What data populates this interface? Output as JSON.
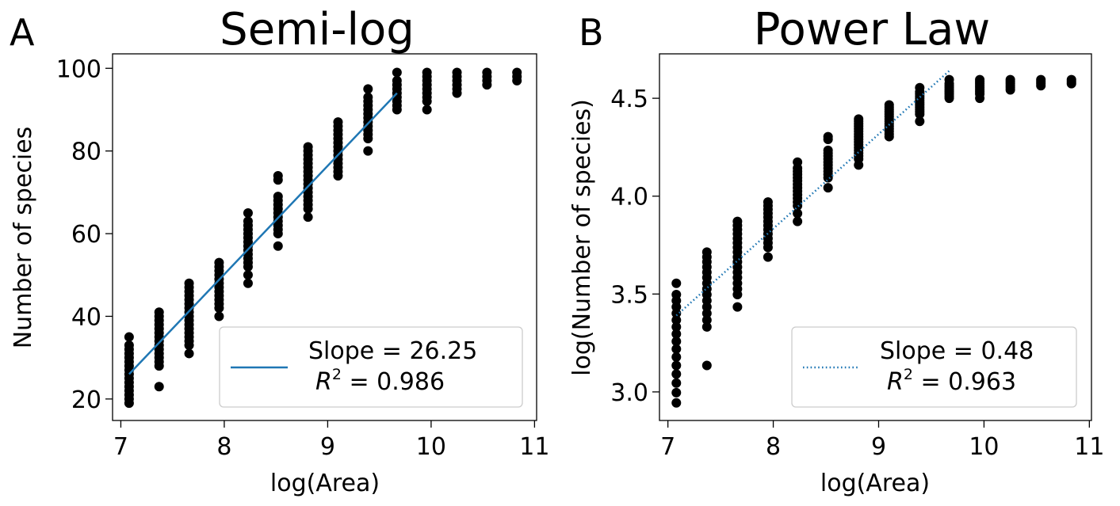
{
  "figure": {
    "panels": [
      {
        "letter": "A",
        "title": "Semi-log",
        "xlabel": "log(Area)",
        "ylabel": "Number of species"
      },
      {
        "letter": "B",
        "title": "Power Law",
        "xlabel": "log(Area)",
        "ylabel": "log(Number of species)"
      }
    ]
  },
  "chart_data": [
    {
      "type": "scatter",
      "title": "Semi-log",
      "xlabel": "log(Area)",
      "ylabel": "Number of species",
      "xlim": [
        6.92,
        11.02
      ],
      "ylim": [
        14.8,
        103.5
      ],
      "xticks": [
        "7",
        "8",
        "9",
        "10",
        "11"
      ],
      "yticks": [
        "20",
        "40",
        "60",
        "80",
        "100"
      ],
      "grid": false,
      "legend_position": "lower-right",
      "point_color": "#000000",
      "series": [
        {
          "x": 7.08,
          "y": [
            19,
            20,
            21,
            22,
            23,
            24,
            25,
            26,
            27,
            28,
            29,
            30,
            31,
            32,
            33,
            35
          ]
        },
        {
          "x": 7.37,
          "y": [
            23,
            28,
            29,
            30,
            31,
            32,
            33,
            34,
            35,
            36,
            37,
            38,
            39,
            40,
            41
          ]
        },
        {
          "x": 7.66,
          "y": [
            31,
            33,
            34,
            35,
            36,
            37,
            38,
            39,
            40,
            41,
            42,
            43,
            44,
            45,
            46,
            47,
            48
          ]
        },
        {
          "x": 7.95,
          "y": [
            40,
            42,
            43,
            44,
            45,
            46,
            47,
            48,
            49,
            50,
            51,
            52,
            53
          ]
        },
        {
          "x": 8.23,
          "y": [
            48,
            50,
            52,
            53,
            54,
            55,
            56,
            57,
            58,
            59,
            60,
            61,
            62,
            63,
            65
          ]
        },
        {
          "x": 8.52,
          "y": [
            57,
            60,
            61,
            62,
            63,
            64,
            65,
            66,
            67,
            68,
            69,
            73,
            74
          ]
        },
        {
          "x": 8.81,
          "y": [
            64,
            66,
            67,
            68,
            69,
            70,
            71,
            72,
            73,
            74,
            75,
            76,
            77,
            78,
            79,
            80,
            81
          ]
        },
        {
          "x": 9.1,
          "y": [
            74,
            75,
            76,
            77,
            78,
            79,
            80,
            81,
            82,
            83,
            84,
            85,
            86,
            87
          ]
        },
        {
          "x": 9.39,
          "y": [
            80,
            83,
            84,
            85,
            86,
            87,
            88,
            89,
            90,
            91,
            92,
            93,
            95
          ]
        },
        {
          "x": 9.67,
          "y": [
            90,
            91,
            92,
            93,
            94,
            95,
            96,
            97,
            99
          ]
        },
        {
          "x": 9.96,
          "y": [
            90,
            92,
            93,
            94,
            95,
            96,
            97,
            98,
            99
          ]
        },
        {
          "x": 10.25,
          "y": [
            94,
            95,
            96,
            97,
            98,
            99
          ]
        },
        {
          "x": 10.54,
          "y": [
            96,
            97,
            98,
            99
          ]
        },
        {
          "x": 10.83,
          "y": [
            97,
            98,
            99
          ]
        }
      ],
      "fit": {
        "style": "solid",
        "color": "#1f77b4",
        "x": [
          7.08,
          9.67
        ],
        "y": [
          26,
          94
        ],
        "legend": {
          "line1": "Slope = 26.25",
          "r2_value": "= 0.986"
        }
      }
    },
    {
      "type": "scatter",
      "title": "Power Law",
      "xlabel": "log(Area)",
      "ylabel": "log(Number of species)",
      "xlim": [
        6.92,
        11.02
      ],
      "ylim": [
        2.854,
        4.727
      ],
      "xticks": [
        "7",
        "8",
        "9",
        "10",
        "11"
      ],
      "yticks": [
        "3.0",
        "3.5",
        "4.0",
        "4.5"
      ],
      "grid": false,
      "legend_position": "lower-right",
      "point_color": "#000000",
      "series": [
        {
          "x": 7.08,
          "y": [
            2.944,
            2.996,
            3.045,
            3.091,
            3.135,
            3.178,
            3.219,
            3.258,
            3.296,
            3.332,
            3.367,
            3.401,
            3.434,
            3.466,
            3.497,
            3.555
          ]
        },
        {
          "x": 7.37,
          "y": [
            3.135,
            3.332,
            3.367,
            3.401,
            3.434,
            3.466,
            3.497,
            3.526,
            3.555,
            3.584,
            3.611,
            3.638,
            3.664,
            3.689,
            3.714
          ]
        },
        {
          "x": 7.66,
          "y": [
            3.434,
            3.497,
            3.526,
            3.555,
            3.584,
            3.611,
            3.638,
            3.664,
            3.689,
            3.714,
            3.738,
            3.761,
            3.784,
            3.807,
            3.829,
            3.85,
            3.871
          ]
        },
        {
          "x": 7.95,
          "y": [
            3.689,
            3.738,
            3.761,
            3.784,
            3.807,
            3.829,
            3.85,
            3.871,
            3.892,
            3.912,
            3.932,
            3.951,
            3.97
          ]
        },
        {
          "x": 8.23,
          "y": [
            3.871,
            3.912,
            3.951,
            3.97,
            3.989,
            4.007,
            4.025,
            4.043,
            4.06,
            4.078,
            4.094,
            4.111,
            4.127,
            4.143,
            4.174
          ]
        },
        {
          "x": 8.52,
          "y": [
            4.043,
            4.094,
            4.111,
            4.127,
            4.143,
            4.159,
            4.174,
            4.19,
            4.205,
            4.22,
            4.234,
            4.29,
            4.304
          ]
        },
        {
          "x": 8.81,
          "y": [
            4.159,
            4.19,
            4.205,
            4.22,
            4.234,
            4.248,
            4.263,
            4.277,
            4.29,
            4.304,
            4.317,
            4.331,
            4.344,
            4.357,
            4.369,
            4.382,
            4.394
          ]
        },
        {
          "x": 9.1,
          "y": [
            4.304,
            4.317,
            4.331,
            4.344,
            4.357,
            4.369,
            4.382,
            4.394,
            4.407,
            4.419,
            4.431,
            4.443,
            4.454,
            4.466
          ]
        },
        {
          "x": 9.39,
          "y": [
            4.382,
            4.419,
            4.431,
            4.443,
            4.454,
            4.466,
            4.477,
            4.489,
            4.5,
            4.511,
            4.522,
            4.533,
            4.554
          ]
        },
        {
          "x": 9.67,
          "y": [
            4.5,
            4.511,
            4.522,
            4.533,
            4.543,
            4.554,
            4.564,
            4.575,
            4.595
          ]
        },
        {
          "x": 9.96,
          "y": [
            4.5,
            4.522,
            4.533,
            4.543,
            4.554,
            4.564,
            4.575,
            4.585,
            4.595
          ]
        },
        {
          "x": 10.25,
          "y": [
            4.543,
            4.554,
            4.564,
            4.575,
            4.585,
            4.595
          ]
        },
        {
          "x": 10.54,
          "y": [
            4.564,
            4.575,
            4.585,
            4.595
          ]
        },
        {
          "x": 10.83,
          "y": [
            4.575,
            4.585,
            4.595
          ]
        }
      ],
      "fit": {
        "style": "dotted",
        "color": "#1f77b4",
        "x": [
          7.08,
          9.67
        ],
        "y": [
          3.39,
          4.64
        ],
        "legend": {
          "line1": "Slope = 0.48",
          "r2_value": "= 0.963"
        }
      }
    }
  ]
}
